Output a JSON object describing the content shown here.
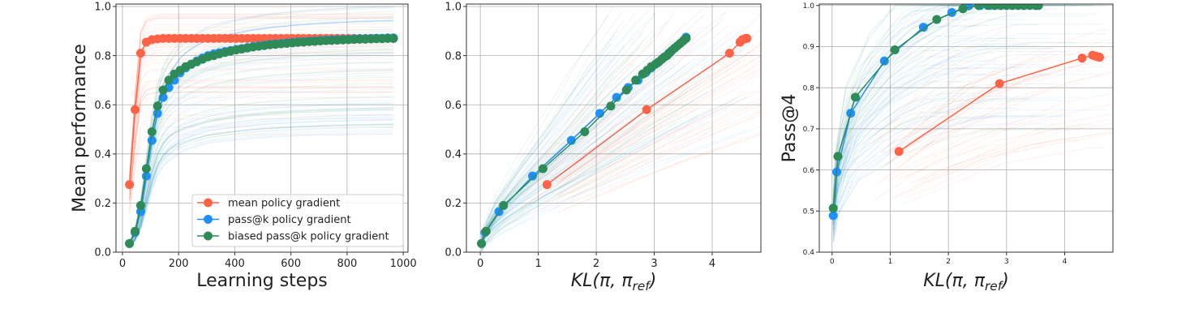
{
  "colors": {
    "mean": "#FF6347",
    "passk": "#1E90FF",
    "biased": "#2E8B57"
  },
  "chart_data": [
    {
      "type": "line",
      "xlabel": "Learning steps",
      "ylabel": "Mean performance",
      "xlim": [
        -23,
        1017
      ],
      "ylim": [
        0,
        1.01
      ],
      "xticks": [
        0,
        200,
        400,
        600,
        800,
        1000
      ],
      "yticks": [
        0.0,
        0.2,
        0.4,
        0.6,
        0.8,
        1.0
      ],
      "ytick_decimals": 1,
      "grid": true,
      "legend": {
        "placement": "lower-right",
        "entries": [
          "mean policy gradient",
          "pass@k policy gradient",
          "biased pass@k policy gradient"
        ]
      },
      "series": [
        {
          "name": "mean policy gradient",
          "color_key": "mean",
          "points": [
            [
              25,
              0.275
            ],
            [
              45,
              0.58
            ],
            [
              65,
              0.81
            ],
            [
              85,
              0.855
            ],
            [
              105,
              0.865
            ],
            [
              125,
              0.868
            ],
            [
              145,
              0.87
            ],
            [
              165,
              0.87
            ],
            [
              185,
              0.87
            ],
            [
              205,
              0.87
            ],
            [
              225,
              0.87
            ],
            [
              245,
              0.87
            ],
            [
              265,
              0.87
            ],
            [
              285,
              0.87
            ],
            [
              305,
              0.87
            ],
            [
              325,
              0.87
            ],
            [
              345,
              0.87
            ],
            [
              365,
              0.87
            ],
            [
              385,
              0.87
            ],
            [
              405,
              0.87
            ],
            [
              425,
              0.87
            ],
            [
              445,
              0.87
            ],
            [
              465,
              0.87
            ],
            [
              485,
              0.87
            ],
            [
              505,
              0.87
            ],
            [
              525,
              0.87
            ],
            [
              545,
              0.87
            ],
            [
              565,
              0.87
            ],
            [
              585,
              0.87
            ],
            [
              605,
              0.87
            ],
            [
              625,
              0.87
            ],
            [
              645,
              0.87
            ],
            [
              665,
              0.87
            ],
            [
              685,
              0.87
            ],
            [
              705,
              0.87
            ],
            [
              725,
              0.87
            ],
            [
              745,
              0.87
            ],
            [
              765,
              0.87
            ],
            [
              785,
              0.87
            ],
            [
              805,
              0.87
            ],
            [
              825,
              0.87
            ],
            [
              845,
              0.87
            ],
            [
              865,
              0.87
            ],
            [
              885,
              0.87
            ],
            [
              905,
              0.87
            ],
            [
              925,
              0.87
            ],
            [
              945,
              0.87
            ],
            [
              965,
              0.87
            ]
          ]
        },
        {
          "name": "pass@k policy gradient",
          "color_key": "passk",
          "points": [
            [
              25,
              0.035
            ],
            [
              45,
              0.08
            ],
            [
              65,
              0.165
            ],
            [
              85,
              0.31
            ],
            [
              105,
              0.455
            ],
            [
              125,
              0.565
            ],
            [
              145,
              0.63
            ],
            [
              165,
              0.67
            ],
            [
              185,
              0.7
            ],
            [
              205,
              0.73
            ],
            [
              225,
              0.75
            ],
            [
              245,
              0.765
            ],
            [
              265,
              0.778
            ],
            [
              285,
              0.79
            ],
            [
              305,
              0.8
            ],
            [
              325,
              0.807
            ],
            [
              345,
              0.812
            ],
            [
              365,
              0.817
            ],
            [
              385,
              0.821
            ],
            [
              405,
              0.825
            ],
            [
              425,
              0.829
            ],
            [
              445,
              0.833
            ],
            [
              465,
              0.837
            ],
            [
              485,
              0.84
            ],
            [
              505,
              0.843
            ],
            [
              525,
              0.846
            ],
            [
              545,
              0.848
            ],
            [
              565,
              0.85
            ],
            [
              585,
              0.852
            ],
            [
              605,
              0.854
            ],
            [
              625,
              0.856
            ],
            [
              645,
              0.857
            ],
            [
              665,
              0.859
            ],
            [
              685,
              0.86
            ],
            [
              705,
              0.862
            ],
            [
              725,
              0.863
            ],
            [
              745,
              0.864
            ],
            [
              765,
              0.865
            ],
            [
              785,
              0.866
            ],
            [
              805,
              0.867
            ],
            [
              825,
              0.868
            ],
            [
              845,
              0.869
            ],
            [
              865,
              0.869
            ],
            [
              885,
              0.87
            ],
            [
              905,
              0.871
            ],
            [
              925,
              0.871
            ],
            [
              945,
              0.872
            ],
            [
              965,
              0.872
            ]
          ]
        },
        {
          "name": "biased pass@k policy gradient",
          "color_key": "biased",
          "points": [
            [
              25,
              0.035
            ],
            [
              45,
              0.085
            ],
            [
              65,
              0.19
            ],
            [
              85,
              0.34
            ],
            [
              105,
              0.49
            ],
            [
              125,
              0.595
            ],
            [
              145,
              0.66
            ],
            [
              165,
              0.7
            ],
            [
              185,
              0.725
            ],
            [
              205,
              0.74
            ],
            [
              225,
              0.755
            ],
            [
              245,
              0.765
            ],
            [
              265,
              0.775
            ],
            [
              285,
              0.785
            ],
            [
              305,
              0.795
            ],
            [
              325,
              0.8
            ],
            [
              345,
              0.807
            ],
            [
              365,
              0.813
            ],
            [
              385,
              0.818
            ],
            [
              405,
              0.823
            ],
            [
              425,
              0.827
            ],
            [
              445,
              0.831
            ],
            [
              465,
              0.835
            ],
            [
              485,
              0.838
            ],
            [
              505,
              0.841
            ],
            [
              525,
              0.844
            ],
            [
              545,
              0.846
            ],
            [
              565,
              0.848
            ],
            [
              585,
              0.85
            ],
            [
              605,
              0.852
            ],
            [
              625,
              0.854
            ],
            [
              645,
              0.855
            ],
            [
              665,
              0.857
            ],
            [
              685,
              0.858
            ],
            [
              705,
              0.86
            ],
            [
              725,
              0.861
            ],
            [
              745,
              0.862
            ],
            [
              765,
              0.863
            ],
            [
              785,
              0.864
            ],
            [
              805,
              0.865
            ],
            [
              825,
              0.866
            ],
            [
              845,
              0.867
            ],
            [
              865,
              0.867
            ],
            [
              885,
              0.868
            ],
            [
              905,
              0.869
            ],
            [
              925,
              0.869
            ],
            [
              945,
              0.87
            ],
            [
              965,
              0.87
            ]
          ]
        }
      ]
    },
    {
      "type": "line",
      "xlabel": "KL(π, π_ref)",
      "ylabel": "",
      "xlim": [
        -0.24,
        4.84
      ],
      "ylim": [
        0,
        1.01
      ],
      "xticks": [
        0,
        1,
        2,
        3,
        4
      ],
      "yticks": [
        0.0,
        0.2,
        0.4,
        0.6,
        0.8,
        1.0
      ],
      "ytick_decimals": 1,
      "grid": true,
      "series": [
        {
          "name": "mean policy gradient",
          "color_key": "mean",
          "points": [
            [
              1.15,
              0.275
            ],
            [
              2.87,
              0.58
            ],
            [
              4.3,
              0.81
            ],
            [
              4.48,
              0.855
            ],
            [
              4.52,
              0.865
            ],
            [
              4.56,
              0.868
            ],
            [
              4.58,
              0.87
            ],
            [
              4.6,
              0.87
            ]
          ]
        },
        {
          "name": "pass@k policy gradient",
          "color_key": "passk",
          "points": [
            [
              0.02,
              0.035
            ],
            [
              0.08,
              0.08
            ],
            [
              0.32,
              0.165
            ],
            [
              0.9,
              0.31
            ],
            [
              1.57,
              0.455
            ],
            [
              2.06,
              0.565
            ],
            [
              2.35,
              0.63
            ],
            [
              2.55,
              0.67
            ],
            [
              2.72,
              0.7
            ],
            [
              2.85,
              0.73
            ],
            [
              2.95,
              0.75
            ],
            [
              3.05,
              0.77
            ],
            [
              3.15,
              0.79
            ],
            [
              3.25,
              0.81
            ],
            [
              3.35,
              0.83
            ],
            [
              3.45,
              0.85
            ],
            [
              3.52,
              0.865
            ],
            [
              3.55,
              0.875
            ]
          ]
        },
        {
          "name": "biased pass@k policy gradient",
          "color_key": "biased",
          "points": [
            [
              0.02,
              0.035
            ],
            [
              0.1,
              0.085
            ],
            [
              0.4,
              0.19
            ],
            [
              1.08,
              0.34
            ],
            [
              1.8,
              0.49
            ],
            [
              2.25,
              0.595
            ],
            [
              2.52,
              0.66
            ],
            [
              2.68,
              0.7
            ],
            [
              2.8,
              0.725
            ],
            [
              2.88,
              0.74
            ],
            [
              2.95,
              0.755
            ],
            [
              3.02,
              0.765
            ],
            [
              3.08,
              0.775
            ],
            [
              3.13,
              0.785
            ],
            [
              3.18,
              0.795
            ],
            [
              3.22,
              0.8
            ],
            [
              3.26,
              0.81
            ],
            [
              3.3,
              0.82
            ],
            [
              3.35,
              0.83
            ],
            [
              3.4,
              0.84
            ],
            [
              3.45,
              0.85
            ],
            [
              3.5,
              0.86
            ],
            [
              3.55,
              0.87
            ]
          ]
        }
      ]
    },
    {
      "type": "line",
      "xlabel": "KL(π, π_ref)",
      "ylabel": "Pass@4",
      "xlim": [
        -0.22,
        4.83
      ],
      "ylim": [
        0.4,
        1.0035
      ],
      "xticks": [
        0,
        1,
        2,
        3,
        4
      ],
      "yticks": [
        0.4,
        0.5,
        0.6,
        0.7,
        0.8,
        0.9,
        1.0
      ],
      "ytick_decimals": 1,
      "grid": true,
      "series": [
        {
          "name": "mean policy gradient",
          "color_key": "mean",
          "points": [
            [
              1.15,
              0.645
            ],
            [
              2.88,
              0.81
            ],
            [
              4.3,
              0.872
            ],
            [
              4.48,
              0.879
            ],
            [
              4.53,
              0.877
            ],
            [
              4.57,
              0.875
            ],
            [
              4.6,
              0.874
            ]
          ]
        },
        {
          "name": "pass@k policy gradient",
          "color_key": "passk",
          "points": [
            [
              0.02,
              0.489
            ],
            [
              0.08,
              0.595
            ],
            [
              0.32,
              0.738
            ],
            [
              0.9,
              0.865
            ],
            [
              1.57,
              0.947
            ],
            [
              2.06,
              0.983
            ],
            [
              2.35,
              0.999
            ],
            [
              2.55,
              1.0
            ],
            [
              2.72,
              1.0
            ],
            [
              2.9,
              1.0
            ],
            [
              3.1,
              1.0
            ],
            [
              3.3,
              1.0
            ],
            [
              3.5,
              1.0
            ]
          ]
        },
        {
          "name": "biased pass@k policy gradient",
          "color_key": "biased",
          "points": [
            [
              0.02,
              0.507
            ],
            [
              0.1,
              0.633
            ],
            [
              0.4,
              0.777
            ],
            [
              1.08,
              0.892
            ],
            [
              1.8,
              0.966
            ],
            [
              2.25,
              0.992
            ],
            [
              2.52,
              1.0
            ],
            [
              2.68,
              1.0
            ],
            [
              2.8,
              1.0
            ],
            [
              2.9,
              1.0
            ],
            [
              3.0,
              1.0
            ],
            [
              3.1,
              1.0
            ],
            [
              3.2,
              1.0
            ],
            [
              3.3,
              1.0
            ],
            [
              3.4,
              1.0
            ],
            [
              3.5,
              1.0
            ],
            [
              3.55,
              1.0
            ]
          ]
        }
      ]
    }
  ]
}
